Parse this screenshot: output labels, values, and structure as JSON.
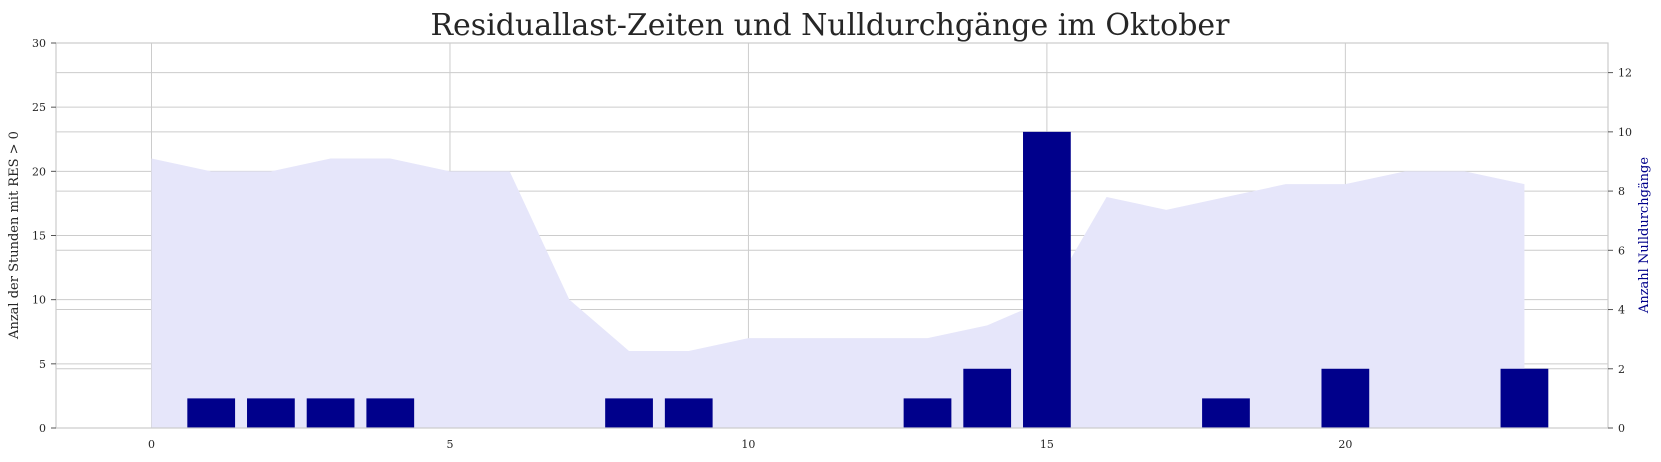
{
  "chart_data": {
    "type": "bar",
    "title": "Residuallast-Zeiten und Nulldurchgänge im Oktober",
    "x": [
      0,
      1,
      2,
      3,
      4,
      5,
      6,
      7,
      8,
      9,
      10,
      11,
      12,
      13,
      14,
      15,
      16,
      17,
      18,
      19,
      20,
      21,
      22,
      23
    ],
    "xticks": [
      "0",
      "5",
      "10",
      "15",
      "20"
    ],
    "xlim": [
      -1.6,
      24.4
    ],
    "area_series": {
      "type": "area",
      "axis": "left",
      "values": [
        21,
        20,
        20,
        21,
        21,
        20,
        20,
        10,
        6,
        6,
        7,
        7,
        7,
        7,
        8,
        10,
        18,
        17,
        18,
        19,
        19,
        20,
        20,
        19
      ],
      "color": "#e6e6fa"
    },
    "bar_series": {
      "type": "bar",
      "axis": "right",
      "values": [
        0,
        1,
        1,
        1,
        1,
        0,
        0,
        0,
        1,
        1,
        0,
        0,
        0,
        1,
        2,
        10,
        0,
        0,
        1,
        0,
        2,
        0,
        0,
        2
      ],
      "color": "#00008b"
    },
    "ylabel_left": "Anzal der Stunden mit RES > 0",
    "ylabel_right": "Anzahl Nulldurchgänge",
    "ylim_left": [
      0,
      30
    ],
    "ylim_right": [
      0,
      13
    ],
    "yticks_left": [
      "0",
      "5",
      "10",
      "15",
      "20",
      "25",
      "30"
    ],
    "yticks_right": [
      "0",
      "2",
      "4",
      "6",
      "8",
      "10",
      "12"
    ],
    "grid": true,
    "colors": {
      "grid": "#cccccc",
      "axes": "#cccccc",
      "right_label": "#00008b"
    }
  }
}
